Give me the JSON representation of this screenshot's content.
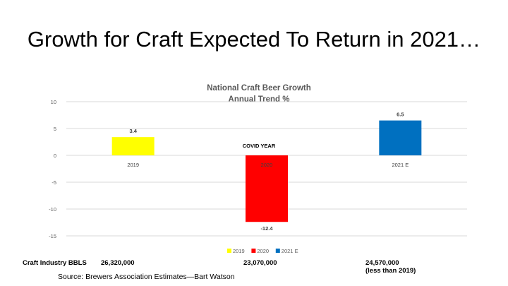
{
  "slide": {
    "title": "Growth for Craft Expected To Return in 2021…",
    "source": "Source:  Brewers Association Estimates—Bart Watson"
  },
  "bbls_row": {
    "label": "Craft Industry BBLS",
    "values": [
      "26,320,000",
      "23,070,000",
      "24,570,000"
    ],
    "note": "(less than 2019)"
  },
  "colors": {
    "2019": "#ffff00",
    "2020": "#ff0000",
    "2021 E": "#0070c0"
  },
  "chart_data": {
    "type": "bar",
    "title": "National Craft Beer Growth",
    "subtitle": "Annual Trend %",
    "categories": [
      "2019",
      "2020",
      "2021 E"
    ],
    "values": [
      3.4,
      -12.4,
      6.5
    ],
    "data_labels": [
      "3.4",
      "-12.4",
      "6.5"
    ],
    "annotation": "COVID YEAR",
    "legend": [
      "2019",
      "2020",
      "2021 E"
    ],
    "legend_position": "bottom",
    "ylim": [
      -15,
      10
    ],
    "yticks": [
      -15,
      -10,
      -5,
      0,
      5,
      10
    ],
    "grid": true
  }
}
